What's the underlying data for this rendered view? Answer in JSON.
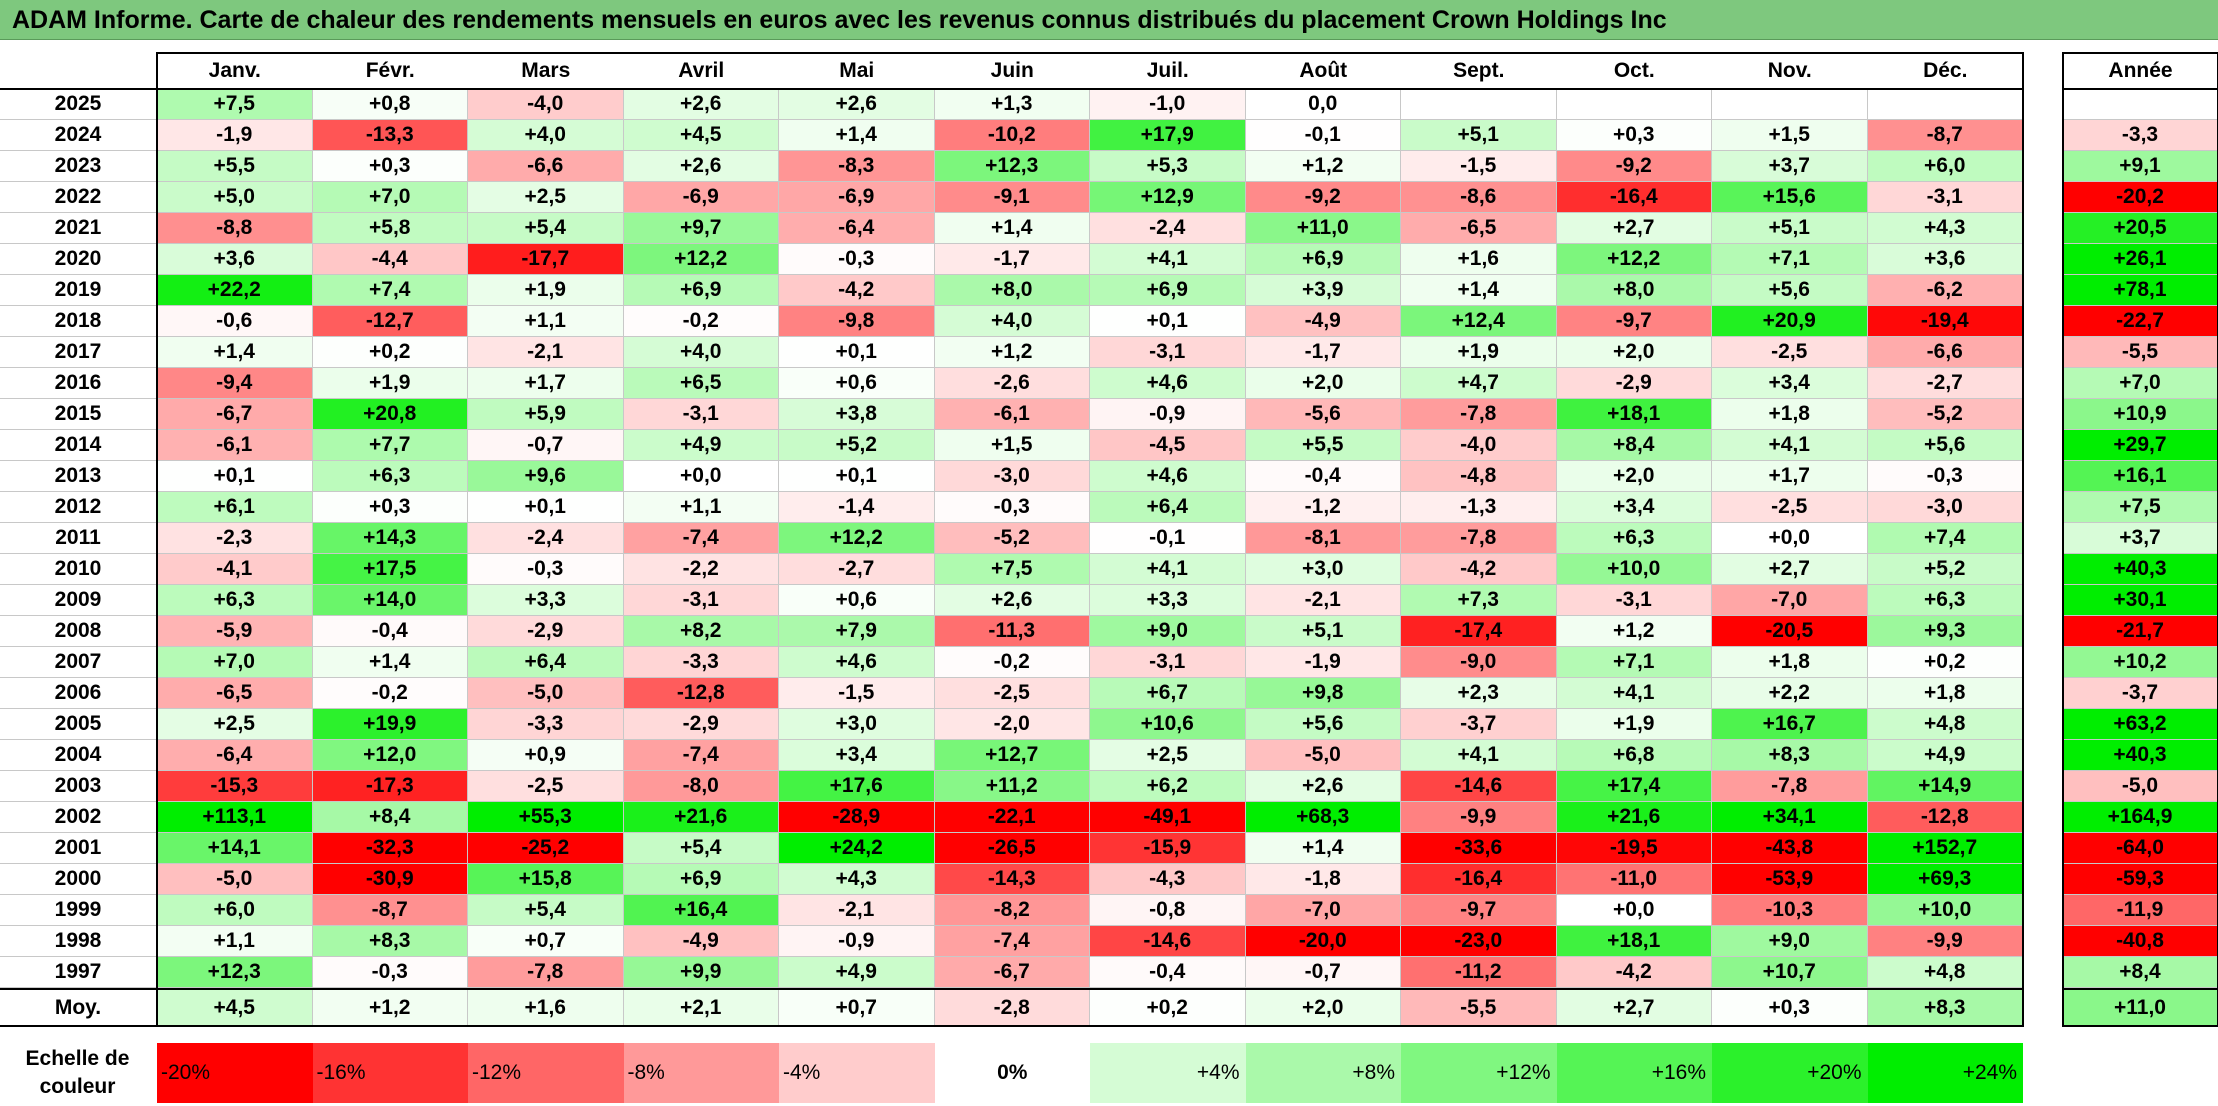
{
  "title": "ADAM Informe. Carte de chaleur des rendements mensuels en euros avec les revenus connus distribués du placement Crown Holdings Inc",
  "chart_data": {
    "type": "heatmap",
    "columns": [
      "Janv.",
      "Févr.",
      "Mars",
      "Avril",
      "Mai",
      "Juin",
      "Juil.",
      "Août",
      "Sept.",
      "Oct.",
      "Nov.",
      "Déc."
    ],
    "year_column": "Année",
    "average_label": "Moy.",
    "rows": [
      {
        "year": "2025",
        "values": [
          "+7,5",
          "+0,8",
          "-4,0",
          "+2,6",
          "+2,6",
          "+1,3",
          "-1,0",
          "0,0",
          "",
          "",
          "",
          ""
        ],
        "annual": ""
      },
      {
        "year": "2024",
        "values": [
          "-1,9",
          "-13,3",
          "+4,0",
          "+4,5",
          "+1,4",
          "-10,2",
          "+17,9",
          "-0,1",
          "+5,1",
          "+0,3",
          "+1,5",
          "-8,7"
        ],
        "annual": "-3,3"
      },
      {
        "year": "2023",
        "values": [
          "+5,5",
          "+0,3",
          "-6,6",
          "+2,6",
          "-8,3",
          "+12,3",
          "+5,3",
          "+1,2",
          "-1,5",
          "-9,2",
          "+3,7",
          "+6,0"
        ],
        "annual": "+9,1"
      },
      {
        "year": "2022",
        "values": [
          "+5,0",
          "+7,0",
          "+2,5",
          "-6,9",
          "-6,9",
          "-9,1",
          "+12,9",
          "-9,2",
          "-8,6",
          "-16,4",
          "+15,6",
          "-3,1"
        ],
        "annual": "-20,2"
      },
      {
        "year": "2021",
        "values": [
          "-8,8",
          "+5,8",
          "+5,4",
          "+9,7",
          "-6,4",
          "+1,4",
          "-2,4",
          "+11,0",
          "-6,5",
          "+2,7",
          "+5,1",
          "+4,3"
        ],
        "annual": "+20,5"
      },
      {
        "year": "2020",
        "values": [
          "+3,6",
          "-4,4",
          "-17,7",
          "+12,2",
          "-0,3",
          "-1,7",
          "+4,1",
          "+6,9",
          "+1,6",
          "+12,2",
          "+7,1",
          "+3,6"
        ],
        "annual": "+26,1"
      },
      {
        "year": "2019",
        "values": [
          "+22,2",
          "+7,4",
          "+1,9",
          "+6,9",
          "-4,2",
          "+8,0",
          "+6,9",
          "+3,9",
          "+1,4",
          "+8,0",
          "+5,6",
          "-6,2"
        ],
        "annual": "+78,1"
      },
      {
        "year": "2018",
        "values": [
          "-0,6",
          "-12,7",
          "+1,1",
          "-0,2",
          "-9,8",
          "+4,0",
          "+0,1",
          "-4,9",
          "+12,4",
          "-9,7",
          "+20,9",
          "-19,4"
        ],
        "annual": "-22,7"
      },
      {
        "year": "2017",
        "values": [
          "+1,4",
          "+0,2",
          "-2,1",
          "+4,0",
          "+0,1",
          "+1,2",
          "-3,1",
          "-1,7",
          "+1,9",
          "+2,0",
          "-2,5",
          "-6,6"
        ],
        "annual": "-5,5"
      },
      {
        "year": "2016",
        "values": [
          "-9,4",
          "+1,9",
          "+1,7",
          "+6,5",
          "+0,6",
          "-2,6",
          "+4,6",
          "+2,0",
          "+4,7",
          "-2,9",
          "+3,4",
          "-2,7"
        ],
        "annual": "+7,0"
      },
      {
        "year": "2015",
        "values": [
          "-6,7",
          "+20,8",
          "+5,9",
          "-3,1",
          "+3,8",
          "-6,1",
          "-0,9",
          "-5,6",
          "-7,8",
          "+18,1",
          "+1,8",
          "-5,2"
        ],
        "annual": "+10,9"
      },
      {
        "year": "2014",
        "values": [
          "-6,1",
          "+7,7",
          "-0,7",
          "+4,9",
          "+5,2",
          "+1,5",
          "-4,5",
          "+5,5",
          "-4,0",
          "+8,4",
          "+4,1",
          "+5,6"
        ],
        "annual": "+29,7"
      },
      {
        "year": "2013",
        "values": [
          "+0,1",
          "+6,3",
          "+9,6",
          "+0,0",
          "+0,1",
          "-3,0",
          "+4,6",
          "-0,4",
          "-4,8",
          "+2,0",
          "+1,7",
          "-0,3"
        ],
        "annual": "+16,1"
      },
      {
        "year": "2012",
        "values": [
          "+6,1",
          "+0,3",
          "+0,1",
          "+1,1",
          "-1,4",
          "-0,3",
          "+6,4",
          "-1,2",
          "-1,3",
          "+3,4",
          "-2,5",
          "-3,0"
        ],
        "annual": "+7,5"
      },
      {
        "year": "2011",
        "values": [
          "-2,3",
          "+14,3",
          "-2,4",
          "-7,4",
          "+12,2",
          "-5,2",
          "-0,1",
          "-8,1",
          "-7,8",
          "+6,3",
          "+0,0",
          "+7,4"
        ],
        "annual": "+3,7"
      },
      {
        "year": "2010",
        "values": [
          "-4,1",
          "+17,5",
          "-0,3",
          "-2,2",
          "-2,7",
          "+7,5",
          "+4,1",
          "+3,0",
          "-4,2",
          "+10,0",
          "+2,7",
          "+5,2"
        ],
        "annual": "+40,3"
      },
      {
        "year": "2009",
        "values": [
          "+6,3",
          "+14,0",
          "+3,3",
          "-3,1",
          "+0,6",
          "+2,6",
          "+3,3",
          "-2,1",
          "+7,3",
          "-3,1",
          "-7,0",
          "+6,3"
        ],
        "annual": "+30,1"
      },
      {
        "year": "2008",
        "values": [
          "-5,9",
          "-0,4",
          "-2,9",
          "+8,2",
          "+7,9",
          "-11,3",
          "+9,0",
          "+5,1",
          "-17,4",
          "+1,2",
          "-20,5",
          "+9,3"
        ],
        "annual": "-21,7"
      },
      {
        "year": "2007",
        "values": [
          "+7,0",
          "+1,4",
          "+6,4",
          "-3,3",
          "+4,6",
          "-0,2",
          "-3,1",
          "-1,9",
          "-9,0",
          "+7,1",
          "+1,8",
          "+0,2"
        ],
        "annual": "+10,2"
      },
      {
        "year": "2006",
        "values": [
          "-6,5",
          "-0,2",
          "-5,0",
          "-12,8",
          "-1,5",
          "-2,5",
          "+6,7",
          "+9,8",
          "+2,3",
          "+4,1",
          "+2,2",
          "+1,8"
        ],
        "annual": "-3,7"
      },
      {
        "year": "2005",
        "values": [
          "+2,5",
          "+19,9",
          "-3,3",
          "-2,9",
          "+3,0",
          "-2,0",
          "+10,6",
          "+5,6",
          "-3,7",
          "+1,9",
          "+16,7",
          "+4,8"
        ],
        "annual": "+63,2"
      },
      {
        "year": "2004",
        "values": [
          "-6,4",
          "+12,0",
          "+0,9",
          "-7,4",
          "+3,4",
          "+12,7",
          "+2,5",
          "-5,0",
          "+4,1",
          "+6,8",
          "+8,3",
          "+4,9"
        ],
        "annual": "+40,3"
      },
      {
        "year": "2003",
        "values": [
          "-15,3",
          "-17,3",
          "-2,5",
          "-8,0",
          "+17,6",
          "+11,2",
          "+6,2",
          "+2,6",
          "-14,6",
          "+17,4",
          "-7,8",
          "+14,9"
        ],
        "annual": "-5,0"
      },
      {
        "year": "2002",
        "values": [
          "+113,1",
          "+8,4",
          "+55,3",
          "+21,6",
          "-28,9",
          "-22,1",
          "-49,1",
          "+68,3",
          "-9,9",
          "+21,6",
          "+34,1",
          "-12,8"
        ],
        "annual": "+164,9"
      },
      {
        "year": "2001",
        "values": [
          "+14,1",
          "-32,3",
          "-25,2",
          "+5,4",
          "+24,2",
          "-26,5",
          "-15,9",
          "+1,4",
          "-33,6",
          "-19,5",
          "-43,8",
          "+152,7"
        ],
        "annual": "-64,0"
      },
      {
        "year": "2000",
        "values": [
          "-5,0",
          "-30,9",
          "+15,8",
          "+6,9",
          "+4,3",
          "-14,3",
          "-4,3",
          "-1,8",
          "-16,4",
          "-11,0",
          "-53,9",
          "+69,3"
        ],
        "annual": "-59,3"
      },
      {
        "year": "1999",
        "values": [
          "+6,0",
          "-8,7",
          "+5,4",
          "+16,4",
          "-2,1",
          "-8,2",
          "-0,8",
          "-7,0",
          "-9,7",
          "+0,0",
          "-10,3",
          "+10,0"
        ],
        "annual": "-11,9"
      },
      {
        "year": "1998",
        "values": [
          "+1,1",
          "+8,3",
          "+0,7",
          "-4,9",
          "-0,9",
          "-7,4",
          "-14,6",
          "-20,0",
          "-23,0",
          "+18,1",
          "+9,0",
          "-9,9"
        ],
        "annual": "-40,8"
      },
      {
        "year": "1997",
        "values": [
          "+12,3",
          "-0,3",
          "-7,8",
          "+9,9",
          "+4,9",
          "-6,7",
          "-0,4",
          "-0,7",
          "-11,2",
          "-4,2",
          "+10,7",
          "+4,8"
        ],
        "annual": "+8,4"
      }
    ],
    "averages": {
      "values": [
        "+4,5",
        "+1,2",
        "+1,6",
        "+2,1",
        "+0,7",
        "-2,8",
        "+0,2",
        "+2,0",
        "-5,5",
        "+2,7",
        "+0,3",
        "+8,3"
      ],
      "annual": "+11,0"
    },
    "color_scale": {
      "label": "Echelle de couleur",
      "steps": [
        {
          "label": "-20%",
          "value": -20
        },
        {
          "label": "-16%",
          "value": -16
        },
        {
          "label": "-12%",
          "value": -12
        },
        {
          "label": "-8%",
          "value": -8
        },
        {
          "label": "-4%",
          "value": -4
        },
        {
          "label": "0%",
          "value": 0
        },
        {
          "label": "+4%",
          "value": 4
        },
        {
          "label": "+8%",
          "value": 8
        },
        {
          "label": "+12%",
          "value": 12
        },
        {
          "label": "+16%",
          "value": 16
        },
        {
          "label": "+20%",
          "value": 20
        },
        {
          "label": "+24%",
          "value": 24
        }
      ]
    }
  }
}
